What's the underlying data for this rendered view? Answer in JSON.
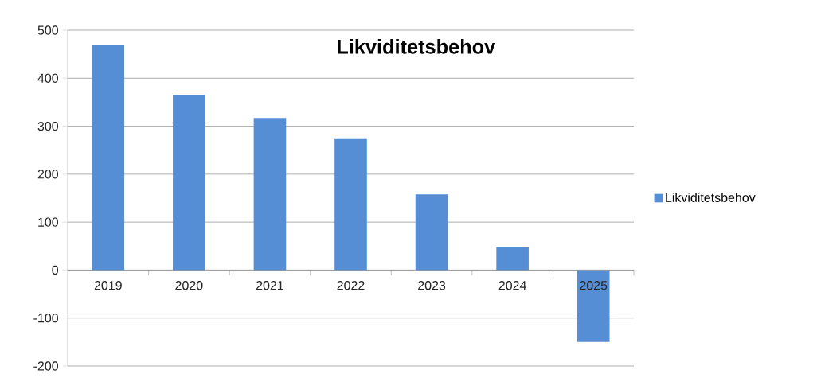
{
  "chart_data": {
    "type": "bar",
    "title": "Likviditetsbehov",
    "categories": [
      "2019",
      "2020",
      "2021",
      "2022",
      "2023",
      "2024",
      "2025"
    ],
    "series": [
      {
        "name": "Likviditetsbehov",
        "color": "#558ed5",
        "values": [
          470,
          365,
          317,
          273,
          158,
          47,
          -150
        ]
      }
    ],
    "ylim": [
      -200,
      500
    ],
    "yticks": [
      -200,
      -100,
      0,
      100,
      200,
      300,
      400,
      500
    ],
    "grid": "y",
    "legend": "right"
  }
}
